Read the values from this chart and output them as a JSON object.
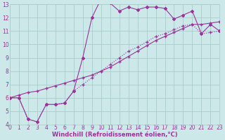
{
  "bg_color": "#cce8e8",
  "grid_color": "#aacccc",
  "line_color": "#993399",
  "xlabel": "Windchill (Refroidissement éolien,°C)",
  "line1_x": [
    0,
    1,
    2,
    3,
    4,
    5,
    6,
    7,
    8,
    9,
    10,
    11,
    12,
    13,
    14,
    15,
    16,
    17,
    18,
    19,
    20,
    21,
    22,
    23
  ],
  "line1_y": [
    6.0,
    6.0,
    4.4,
    4.2,
    5.5,
    5.5,
    5.6,
    6.5,
    9.0,
    12.0,
    13.4,
    13.1,
    12.5,
    12.8,
    12.6,
    12.8,
    12.8,
    12.7,
    11.9,
    12.2,
    12.5,
    10.8,
    11.5,
    11.0
  ],
  "line2_x": [
    0,
    1,
    2,
    3,
    4,
    5,
    6,
    7,
    8,
    9,
    10,
    11,
    12,
    13,
    14,
    15,
    16,
    17,
    18,
    19,
    20,
    21,
    22,
    23
  ],
  "line2_y": [
    6.0,
    6.2,
    6.4,
    6.5,
    6.7,
    6.9,
    7.1,
    7.3,
    7.5,
    7.7,
    8.0,
    8.3,
    8.7,
    9.1,
    9.5,
    9.9,
    10.3,
    10.6,
    10.9,
    11.2,
    11.5,
    11.5,
    11.6,
    11.7
  ],
  "line3_x": [
    0,
    1,
    2,
    3,
    4,
    5,
    6,
    7,
    8,
    9,
    10,
    11,
    12,
    13,
    14,
    15,
    16,
    17,
    18,
    19,
    20,
    21,
    22,
    23
  ],
  "line3_y": [
    6.0,
    6.0,
    4.4,
    4.2,
    5.5,
    5.5,
    5.6,
    6.5,
    7.0,
    7.5,
    8.0,
    8.5,
    9.0,
    9.5,
    9.8,
    10.2,
    10.6,
    10.8,
    11.1,
    11.4,
    11.5,
    10.8,
    10.9,
    11.0
  ],
  "xlim": [
    0,
    23
  ],
  "ylim": [
    4,
    13
  ],
  "xticks": [
    0,
    1,
    2,
    3,
    4,
    5,
    6,
    7,
    8,
    9,
    10,
    11,
    12,
    13,
    14,
    15,
    16,
    17,
    18,
    19,
    20,
    21,
    22,
    23
  ],
  "yticks": [
    4,
    5,
    6,
    7,
    8,
    9,
    10,
    11,
    12,
    13
  ],
  "tick_fontsize": 5.5,
  "xlabel_fontsize": 6.0,
  "marker_size": 2.0
}
